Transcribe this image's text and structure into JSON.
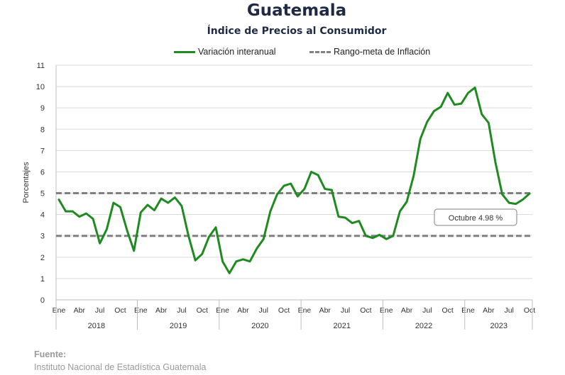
{
  "title": "Guatemala",
  "subtitle": "Índice de Precios al Consumidor",
  "legend": {
    "series_label": "Variación interanual",
    "band_label": "Rango-meta de Inflación"
  },
  "source": {
    "label": "Fuente:",
    "text": "Instituto Nacional de Estadística Guatemala"
  },
  "colors": {
    "series": "#1f8a1f",
    "band": "#808080",
    "grid": "#d9d9d9"
  },
  "chart_data": {
    "type": "line",
    "ylabel": "Porcentajes",
    "ylim": [
      0,
      11
    ],
    "yticks": [
      0,
      1,
      2,
      3,
      4,
      5,
      6,
      7,
      8,
      9,
      10,
      11
    ],
    "grid": true,
    "legend_position": "top",
    "month_tick_labels": [
      "Ene",
      "Abr",
      "Jul",
      "Oct"
    ],
    "years": [
      "2018",
      "2019",
      "2020",
      "2021",
      "2022",
      "2023"
    ],
    "target_band": [
      3,
      5
    ],
    "annotation": "Octubre 4.98 %",
    "series": [
      {
        "name": "Variación interanual",
        "values": [
          4.7,
          4.15,
          4.15,
          3.9,
          4.05,
          3.8,
          2.65,
          3.3,
          4.55,
          4.35,
          3.25,
          2.3,
          4.1,
          4.45,
          4.2,
          4.75,
          4.55,
          4.8,
          4.4,
          3.0,
          1.85,
          2.15,
          2.95,
          3.4,
          1.8,
          1.25,
          1.8,
          1.9,
          1.8,
          2.4,
          2.85,
          4.15,
          4.95,
          5.35,
          5.45,
          4.85,
          5.2,
          6.0,
          5.85,
          5.2,
          5.15,
          3.9,
          3.85,
          3.6,
          3.7,
          3.0,
          2.9,
          3.05,
          2.85,
          3.0,
          4.15,
          4.6,
          5.8,
          7.55,
          8.35,
          8.85,
          9.05,
          9.7,
          9.15,
          9.2,
          9.7,
          9.95,
          8.7,
          8.3,
          6.45,
          4.95,
          4.55,
          4.5,
          4.7,
          4.98
        ]
      }
    ]
  }
}
